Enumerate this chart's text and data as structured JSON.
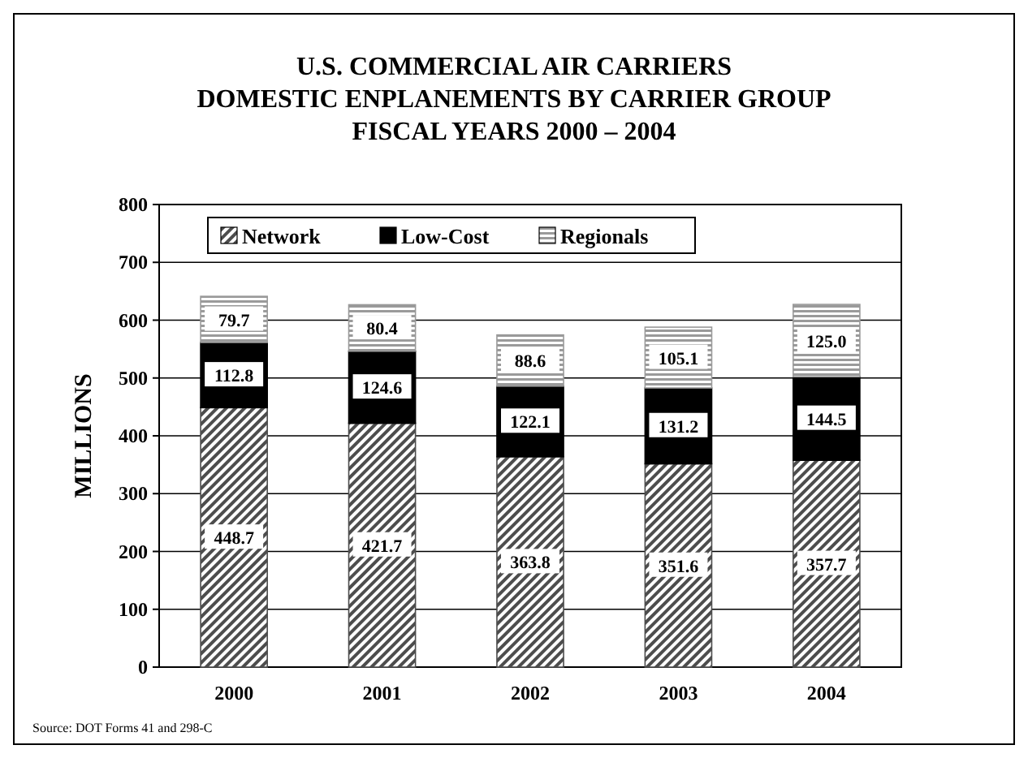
{
  "chart_data": {
    "type": "bar",
    "title": "U.S. COMMERCIAL AIR CARRIERS\nDOMESTIC ENPLANEMENTS BY CARRIER GROUP",
    "subtitle": "FISCAL YEARS 2000 – 2004",
    "ylabel": "MILLIONS",
    "categories": [
      "2000",
      "2001",
      "2002",
      "2003",
      "2004"
    ],
    "stacked": true,
    "ylim": [
      0,
      800
    ],
    "yticks": [
      0,
      100,
      200,
      300,
      400,
      500,
      600,
      700,
      800
    ],
    "grid": "y",
    "legend": "top",
    "annotations": [
      "Source: DOT Forms 41 and 298-C"
    ],
    "series": [
      {
        "name": "Network",
        "color": "#4d4d4d",
        "values": [
          448.7,
          421.7,
          363.8,
          351.6,
          357.7
        ],
        "value_labels": [
          "448.7",
          "421.7",
          "363.8",
          "351.6",
          "357.7"
        ]
      },
      {
        "name": "Low-Cost",
        "color": "#000000",
        "values": [
          112.8,
          124.6,
          122.1,
          131.2,
          144.5
        ],
        "value_labels": [
          "112.8",
          "124.6",
          "122.1",
          "131.2",
          "144.5"
        ]
      },
      {
        "name": "Regionals",
        "color": "#9a9a9a",
        "values": [
          79.7,
          80.4,
          88.6,
          105.1,
          125.0
        ],
        "value_labels": [
          "79.7",
          "80.4",
          "88.6",
          "105.1",
          "125.0"
        ]
      }
    ]
  }
}
